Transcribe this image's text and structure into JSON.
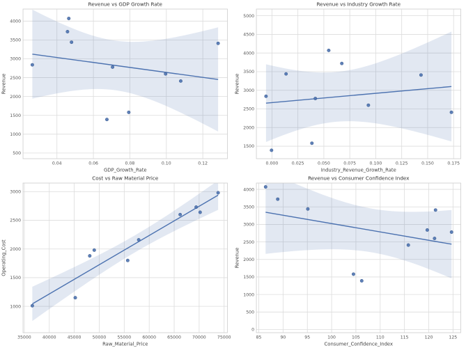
{
  "page": {
    "background": "#ffffff"
  },
  "style": {
    "accent_blue": "#4c72b0",
    "band_fill": "#4c72b0",
    "band_opacity": 0.16,
    "point_opacity": 0.9,
    "grid_color": "#dcdcdc",
    "axis_edge_color": "#cccccc",
    "plot_bg": "#ffffff",
    "title_color": "#333333",
    "tick_color": "#555555",
    "label_color": "#444444"
  },
  "chart_data": [
    {
      "type": "scatter",
      "regression": true,
      "title": "Revenue vs GDP Growth Rate",
      "xlabel": "GDP_Growth_Rate",
      "ylabel": "Revenue",
      "x": [
        0.0265,
        0.0465,
        0.0458,
        0.048,
        0.0674,
        0.0705,
        0.0794,
        0.0996,
        0.1079,
        0.1284
      ],
      "y": [
        2840,
        4070,
        3720,
        3440,
        1390,
        2780,
        1580,
        2600,
        2410,
        3410
      ],
      "xlim": [
        0.0214,
        0.1335
      ],
      "ylim": [
        350,
        4320
      ],
      "xticks": [
        0.04,
        0.06,
        0.08,
        0.1,
        0.12
      ],
      "xtick_labels": [
        "0.04",
        "0.06",
        "0.08",
        "0.10",
        "0.12"
      ],
      "yticks": [
        500,
        1000,
        1500,
        2000,
        2500,
        3000,
        3500,
        4000
      ],
      "ytick_labels": [
        "500",
        "1000",
        "1500",
        "2000",
        "2500",
        "3000",
        "3500",
        "4000"
      ]
    },
    {
      "type": "scatter",
      "regression": true,
      "title": "Revenue vs Industry Growth Rate",
      "xlabel": "Industry_Revenue_Growth_Rate",
      "ylabel": "Revenue",
      "x": [
        -0.0057,
        -0.0004,
        0.0136,
        0.0385,
        0.0418,
        0.0547,
        0.0673,
        0.0929,
        0.1436,
        0.1729
      ],
      "y": [
        2840,
        1390,
        3440,
        1580,
        2780,
        4070,
        3720,
        2600,
        3410,
        2410
      ],
      "xlim": [
        -0.015,
        0.1819
      ],
      "ylim": [
        1165,
        5180
      ],
      "xticks": [
        0.0,
        0.025,
        0.05,
        0.075,
        0.1,
        0.125,
        0.15,
        0.175
      ],
      "xtick_labels": [
        "0.000",
        "0.025",
        "0.050",
        "0.075",
        "0.100",
        "0.125",
        "0.150",
        "0.175"
      ],
      "yticks": [
        1500,
        2000,
        2500,
        3000,
        3500,
        4000,
        4500,
        5000
      ],
      "ytick_labels": [
        "1500",
        "2000",
        "2500",
        "3000",
        "3500",
        "4000",
        "4500",
        "5000"
      ]
    },
    {
      "type": "scatter",
      "regression": true,
      "title": "Cost vs Raw Material Price",
      "xlabel": "Raw_Material_Price",
      "ylabel": "Operating_Cost",
      "x": [
        36600,
        45200,
        48100,
        49000,
        55700,
        57900,
        66200,
        69400,
        70200,
        73800
      ],
      "y": [
        1010,
        1150,
        1880,
        1980,
        1800,
        2160,
        2600,
        2730,
        2640,
        2980
      ],
      "xlim": [
        34740,
        75660
      ],
      "ylim": [
        540,
        3150
      ],
      "xticks": [
        35000,
        40000,
        45000,
        50000,
        55000,
        60000,
        65000,
        70000,
        75000
      ],
      "xtick_labels": [
        "35000",
        "40000",
        "45000",
        "50000",
        "55000",
        "60000",
        "65000",
        "70000",
        "75000"
      ],
      "yticks": [
        1000,
        1500,
        2000,
        2500,
        3000
      ],
      "ytick_labels": [
        "1000",
        "1500",
        "2000",
        "2500",
        "3000"
      ]
    },
    {
      "type": "scatter",
      "regression": true,
      "title": "Revenue vs Consumer Confidence Index",
      "xlabel": "Consumer_Confidence_Index",
      "ylabel": "Revenue",
      "x": [
        86.4,
        88.9,
        95.1,
        104.5,
        106.2,
        115.8,
        119.7,
        121.4,
        121.2,
        124.7
      ],
      "y": [
        4070,
        3720,
        3440,
        1580,
        1390,
        2410,
        2840,
        3410,
        2600,
        2780
      ],
      "xlim": [
        84.5,
        126.6
      ],
      "ylim": [
        -90,
        4180
      ],
      "xticks": [
        85,
        90,
        95,
        100,
        105,
        110,
        115,
        120,
        125
      ],
      "xtick_labels": [
        "85",
        "90",
        "95",
        "100",
        "105",
        "110",
        "115",
        "120",
        "125"
      ],
      "yticks": [
        0,
        500,
        1000,
        1500,
        2000,
        2500,
        3000,
        3500,
        4000
      ],
      "ytick_labels": [
        "0",
        "500",
        "1000",
        "1500",
        "2000",
        "2500",
        "3000",
        "3500",
        "4000"
      ]
    }
  ]
}
